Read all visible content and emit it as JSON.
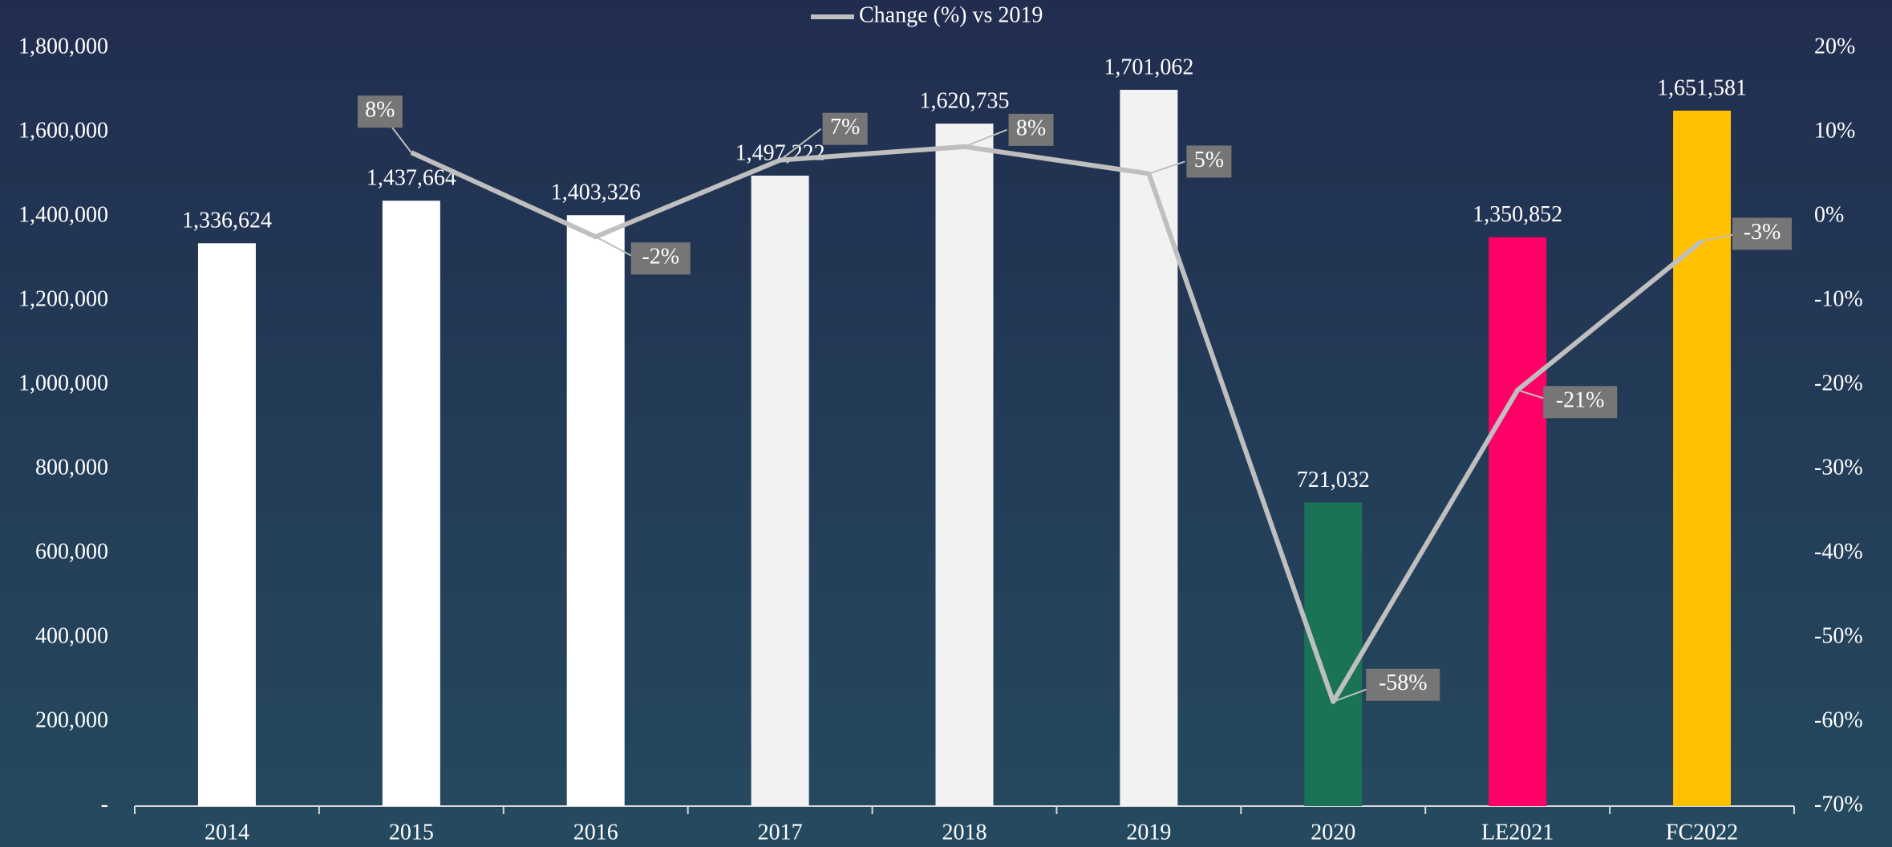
{
  "chart_data": {
    "type": "bar",
    "categories": [
      "2014",
      "2015",
      "2016",
      "2017",
      "2018",
      "2019",
      "2020",
      "LE2021",
      "FC2022"
    ],
    "series": [
      {
        "values": [
          1336624,
          1437664,
          1403326,
          1497222,
          1620735,
          1701062,
          721032,
          1350852,
          1651581
        ],
        "value_labels": [
          "1,336,624",
          "1,437,664",
          "1,403,326",
          "1,497,222",
          "1,620,735",
          "1,701,062",
          "721,032",
          "1,350,852",
          "1,651,581"
        ],
        "colors": [
          "#ffffff",
          "#ffffff",
          "#ffffff",
          "#f2f2f2",
          "#f2f2f2",
          "#f2f2f2",
          "#1a7357",
          "#ff0066",
          "#ffc000"
        ]
      },
      {
        "name": "Change (%) vs 2019",
        "type": "line",
        "axis": "y2",
        "color": "#bfbfbf",
        "values": [
          null,
          7.6,
          -2.4,
          6.7,
          8.3,
          5.1,
          -57.6,
          -20.6,
          -2.9
        ],
        "value_labels": [
          null,
          "8%",
          "-2%",
          "7%",
          "8%",
          "5%",
          "-58%",
          "-21%",
          "-3%"
        ]
      }
    ],
    "ylim": [
      0,
      1800000
    ],
    "yticks": [
      {
        "value": 0,
        "label": "-"
      },
      {
        "value": 200000,
        "label": "200,000"
      },
      {
        "value": 400000,
        "label": "400,000"
      },
      {
        "value": 600000,
        "label": "600,000"
      },
      {
        "value": 800000,
        "label": "800,000"
      },
      {
        "value": 1000000,
        "label": "1,000,000"
      },
      {
        "value": 1200000,
        "label": "1,200,000"
      },
      {
        "value": 1400000,
        "label": "1,400,000"
      },
      {
        "value": 1600000,
        "label": "1,600,000"
      },
      {
        "value": 1800000,
        "label": "1,800,000"
      }
    ],
    "y2lim": [
      -70,
      20
    ],
    "y2ticks": [
      {
        "value": -70,
        "label": "-70%"
      },
      {
        "value": -60,
        "label": "-60%"
      },
      {
        "value": -50,
        "label": "-50%"
      },
      {
        "value": -40,
        "label": "-40%"
      },
      {
        "value": -30,
        "label": "-30%"
      },
      {
        "value": -20,
        "label": "-20%"
      },
      {
        "value": -10,
        "label": "-10%"
      },
      {
        "value": 0,
        "label": "0%"
      },
      {
        "value": 10,
        "label": "10%"
      },
      {
        "value": 20,
        "label": "20%"
      }
    ],
    "legend": "top"
  }
}
